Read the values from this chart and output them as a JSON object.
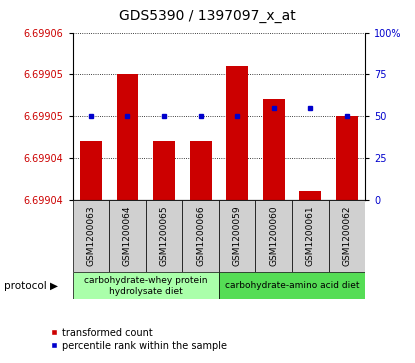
{
  "title": "GDS5390 / 1397097_x_at",
  "samples": [
    "GSM1200063",
    "GSM1200064",
    "GSM1200065",
    "GSM1200066",
    "GSM1200059",
    "GSM1200060",
    "GSM1200061",
    "GSM1200062"
  ],
  "transformed_counts": [
    6.699047,
    6.699055,
    6.699047,
    6.699047,
    6.699056,
    6.699052,
    6.699041,
    6.69905
  ],
  "percentile_ranks": [
    50,
    50,
    50,
    50,
    50,
    55,
    55,
    50
  ],
  "ylim_left": [
    6.69904,
    6.69906
  ],
  "ylim_right": [
    0,
    100
  ],
  "left_ticks": [
    6.69904,
    6.699045,
    6.69905,
    6.699055,
    6.69906
  ],
  "left_tick_labels": [
    "6.69904",
    "6.69904",
    "6.69905",
    "6.69905",
    "6.69906"
  ],
  "right_ticks": [
    0,
    25,
    50,
    75,
    100
  ],
  "right_tick_labels": [
    "0",
    "25",
    "50",
    "75",
    "100%"
  ],
  "bar_color": "#cc0000",
  "dot_color": "#0000cc",
  "tick_color_left": "#cc0000",
  "tick_color_right": "#0000cc",
  "protocol_groups": [
    {
      "label": "carbohydrate-whey protein\nhydrolysate diet",
      "start": 0,
      "end": 4,
      "color": "#aaffaa"
    },
    {
      "label": "carbohydrate-amino acid diet",
      "start": 4,
      "end": 8,
      "color": "#55dd55"
    }
  ],
  "legend_items": [
    {
      "label": "transformed count",
      "color": "#cc0000"
    },
    {
      "label": "percentile rank within the sample",
      "color": "#0000cc"
    }
  ],
  "base_value": 6.69904,
  "bar_width": 0.6,
  "sample_box_color": "#d0d0d0",
  "grid_linestyle": "dotted",
  "grid_color": "#000000",
  "title_fontsize": 10,
  "axis_fontsize": 7,
  "label_fontsize": 6.5
}
